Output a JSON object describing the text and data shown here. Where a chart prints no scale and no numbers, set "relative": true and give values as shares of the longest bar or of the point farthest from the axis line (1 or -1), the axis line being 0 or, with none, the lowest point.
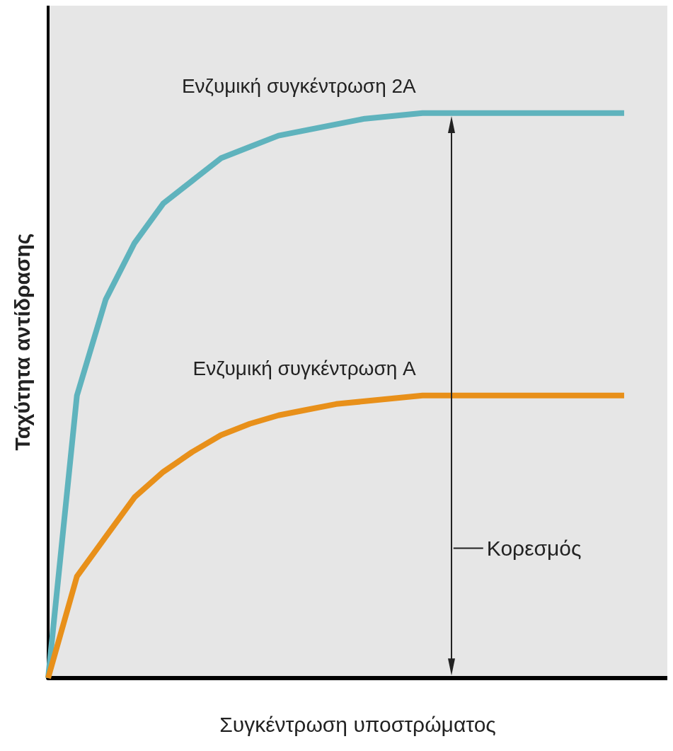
{
  "chart_data": {
    "type": "line",
    "relative": true,
    "xlabel": "Συγκέντρωση υποστρώματος",
    "ylabel": "Ταχύτητα αντίδρασης",
    "categories": [
      null,
      null,
      null,
      null,
      null,
      null,
      null,
      null,
      null,
      null,
      null,
      null,
      null,
      null,
      null,
      null,
      null,
      null,
      null,
      null,
      null
    ],
    "series": [
      {
        "name": "Ενζυμική συγκέντρωση 2A",
        "color": "#5fb3bd",
        "values": [
          0,
          0.5,
          0.67,
          0.77,
          0.84,
          0.88,
          0.92,
          0.94,
          0.96,
          0.97,
          0.98,
          0.99,
          0.995,
          1,
          1,
          1,
          1,
          1,
          1,
          1,
          1
        ]
      },
      {
        "name": "Ενζυμική συγκέντρωση A",
        "color": "#e8901a",
        "values": [
          0,
          0.18,
          0.25,
          0.32,
          0.365,
          0.4,
          0.43,
          0.45,
          0.465,
          0.475,
          0.485,
          0.49,
          0.495,
          0.5,
          0.5,
          0.5,
          0.5,
          0.5,
          0.5,
          0.5,
          0.5
        ]
      }
    ],
    "annotations": [
      "Κορεσμός"
    ]
  }
}
